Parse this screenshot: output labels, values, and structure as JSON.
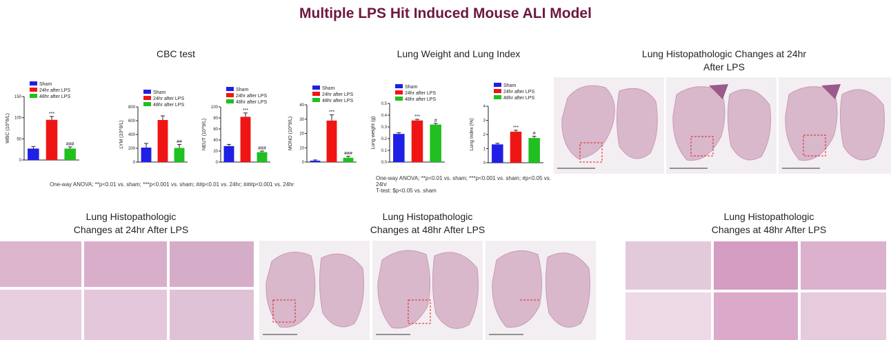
{
  "title": "Multiple LPS Hit Induced Mouse ALI Model",
  "cbc": {
    "heading": "CBC test",
    "footnote": "One-way ANOVA; **p<0.01 vs. sham; ***p<0.001 vs. sham; ##p<0.01 vs. 24hr; ###p<0.001 vs. 24hr"
  },
  "lung": {
    "heading": "Lung Weight and Lung Index",
    "footnote_line1": "One-way ANOVA; **p<0.01 vs. sham; ***p<0.001 vs. sham; #p<0.05 vs. 24hr",
    "footnote_line2": "T-test: $p<0.05 vs. sham"
  },
  "histo": {
    "top_right_heading_line1": "Lung Histopathologic Changes at 24hr",
    "top_right_heading_line2": "After LPS",
    "bottom_left_heading_line1": "Lung Histopathologic",
    "bottom_left_heading_line2": "Changes at 24hr After LPS",
    "bottom_mid_heading_line1": "Lung Histopathologic",
    "bottom_mid_heading_line2": "Changes at 48hr After LPS",
    "bottom_right_heading_line1": "Lung Histopathologic",
    "bottom_right_heading_line2": "Changes at 48hr After LPS"
  },
  "colors": {
    "sham": "#1f1fe6",
    "h24": "#f01515",
    "h48": "#1fc01f",
    "title": "#6d1741"
  },
  "legend": [
    "Sham",
    "24hr after LPS",
    "48hr after LPS"
  ],
  "chart_data": [
    {
      "type": "bar",
      "categories": [
        "Sham",
        "24hr after LPS",
        "48hr after LPS"
      ],
      "values": [
        27,
        95,
        27
      ],
      "errors": [
        5,
        8,
        4
      ],
      "ylim": [
        0,
        150
      ],
      "yticks": [
        "0",
        "50",
        "100",
        "150"
      ],
      "ylabel": "WBC (10^9/L)",
      "sig": [
        "",
        "***",
        "###"
      ]
    },
    {
      "type": "bar",
      "categories": [
        "Sham",
        "24hr after LPS",
        "48hr after LPS"
      ],
      "values": [
        210,
        610,
        205
      ],
      "errors": [
        60,
        60,
        50
      ],
      "ylim": [
        0,
        800
      ],
      "yticks": [
        "0",
        "200",
        "400",
        "600",
        "800"
      ],
      "ylabel": "LYM (10^9/L)",
      "sig": [
        "",
        "",
        "##"
      ]
    },
    {
      "type": "bar",
      "categories": [
        "Sham",
        "24hr after LPS",
        "48hr after LPS"
      ],
      "values": [
        29,
        82,
        18
      ],
      "errors": [
        3,
        7,
        2
      ],
      "ylim": [
        0,
        100
      ],
      "yticks": [
        "0",
        "20",
        "40",
        "60",
        "80",
        "100"
      ],
      "ylabel": "NEUT (10^9/L)",
      "sig": [
        "",
        "***",
        "###"
      ]
    },
    {
      "type": "bar",
      "categories": [
        "Sham",
        "24hr after LPS",
        "48hr after LPS"
      ],
      "values": [
        1,
        29,
        3
      ],
      "errors": [
        0.5,
        4,
        1
      ],
      "ylim": [
        0,
        40
      ],
      "yticks": [
        "0",
        "10",
        "20",
        "30",
        "40"
      ],
      "ylabel": "MONO (10^9/L)",
      "sig": [
        "",
        "***",
        "###"
      ]
    },
    {
      "type": "bar",
      "categories": [
        "Sham",
        "24hr after LPS",
        "48hr after LPS"
      ],
      "values": [
        0.24,
        0.355,
        0.32
      ],
      "errors": [
        0.01,
        0.01,
        0.01
      ],
      "ylim": [
        0,
        0.5
      ],
      "yticks": [
        "0.0",
        "0.1",
        "0.2",
        "0.3",
        "0.4",
        "0.5"
      ],
      "ylabel": "Lung weight (g)",
      "sig": [
        "",
        "***",
        "#"
      ]
    },
    {
      "type": "bar",
      "categories": [
        "Sham",
        "24hr after LPS",
        "48hr after LPS"
      ],
      "values": [
        1.3,
        2.2,
        1.75
      ],
      "errors": [
        0.08,
        0.1,
        0.12
      ],
      "ylim": [
        0,
        4
      ],
      "yticks": [
        "0",
        "1",
        "2",
        "3",
        "4"
      ],
      "ylabel": "Lung index (%)",
      "sig": [
        "",
        "***",
        "#"
      ]
    }
  ]
}
